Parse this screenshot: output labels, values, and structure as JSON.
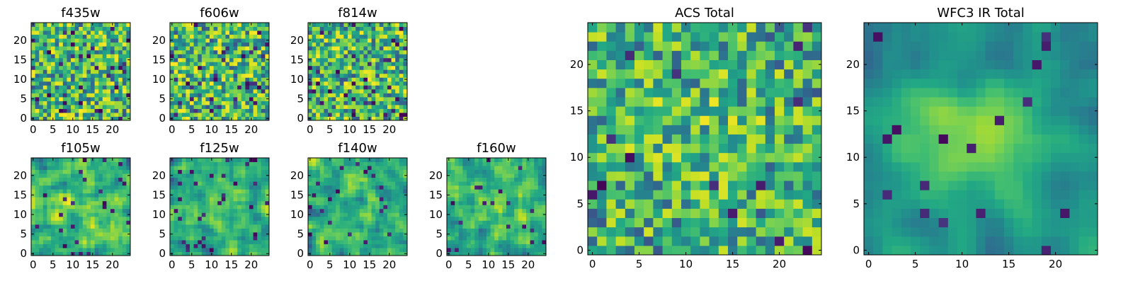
{
  "chart_data": [
    {
      "type": "heatmap",
      "title": "f435w",
      "size": 25,
      "xticks": [
        "0",
        "5",
        "10",
        "15",
        "20"
      ],
      "yticks": [
        "0",
        "5",
        "10",
        "15",
        "20"
      ],
      "seed": 11,
      "smooth": 0,
      "blob": 0,
      "darkness": 0.06
    },
    {
      "type": "heatmap",
      "title": "f606w",
      "size": 25,
      "xticks": [
        "0",
        "5",
        "10",
        "15",
        "20"
      ],
      "yticks": [
        "0",
        "5",
        "10",
        "15",
        "20"
      ],
      "seed": 23,
      "smooth": 0,
      "blob": 0,
      "darkness": 0.06
    },
    {
      "type": "heatmap",
      "title": "f814w",
      "size": 25,
      "xticks": [
        "0",
        "5",
        "10",
        "15",
        "20"
      ],
      "yticks": [
        "0",
        "5",
        "10",
        "15",
        "20"
      ],
      "seed": 37,
      "smooth": 0,
      "blob": 0,
      "darkness": 0.06
    },
    {
      "type": "heatmap",
      "title": "f105w",
      "size": 25,
      "xticks": [
        "0",
        "5",
        "10",
        "15",
        "20"
      ],
      "yticks": [
        "0",
        "5",
        "10",
        "15",
        "20"
      ],
      "seed": 41,
      "smooth": 1,
      "blob": 0.15,
      "darkness": 0.04
    },
    {
      "type": "heatmap",
      "title": "f125w",
      "size": 25,
      "xticks": [
        "0",
        "5",
        "10",
        "15",
        "20"
      ],
      "yticks": [
        "0",
        "5",
        "10",
        "15",
        "20"
      ],
      "seed": 53,
      "smooth": 1,
      "blob": 0.15,
      "darkness": 0.04
    },
    {
      "type": "heatmap",
      "title": "f140w",
      "size": 25,
      "xticks": [
        "0",
        "5",
        "10",
        "15",
        "20"
      ],
      "yticks": [
        "0",
        "5",
        "10",
        "15",
        "20"
      ],
      "seed": 67,
      "smooth": 1,
      "blob": 0.1,
      "darkness": 0.04
    },
    {
      "type": "heatmap",
      "title": "f160w",
      "size": 25,
      "xticks": [
        "0",
        "5",
        "10",
        "15",
        "20"
      ],
      "yticks": [
        "0",
        "5",
        "10",
        "15",
        "20"
      ],
      "seed": 79,
      "smooth": 1,
      "blob": 0.2,
      "darkness": 0.04
    },
    {
      "type": "heatmap",
      "title": "ACS Total",
      "size": 25,
      "xticks": [
        "0",
        "5",
        "10",
        "15",
        "20"
      ],
      "yticks": [
        "0",
        "5",
        "10",
        "15",
        "20"
      ],
      "seed": 83,
      "smooth": 0,
      "blob": 0.12,
      "darkness": 0.03
    },
    {
      "type": "heatmap",
      "title": "WFC3 IR Total",
      "size": 25,
      "xticks": [
        "0",
        "5",
        "10",
        "15",
        "20"
      ],
      "yticks": [
        "0",
        "5",
        "10",
        "15",
        "20"
      ],
      "seed": 97,
      "smooth": 2,
      "blob": 0.55,
      "darkness": 0.03
    }
  ],
  "colormap": {
    "name": "viridis",
    "dark": "#440154",
    "mid": "#21918c",
    "bright": "#fde725"
  }
}
